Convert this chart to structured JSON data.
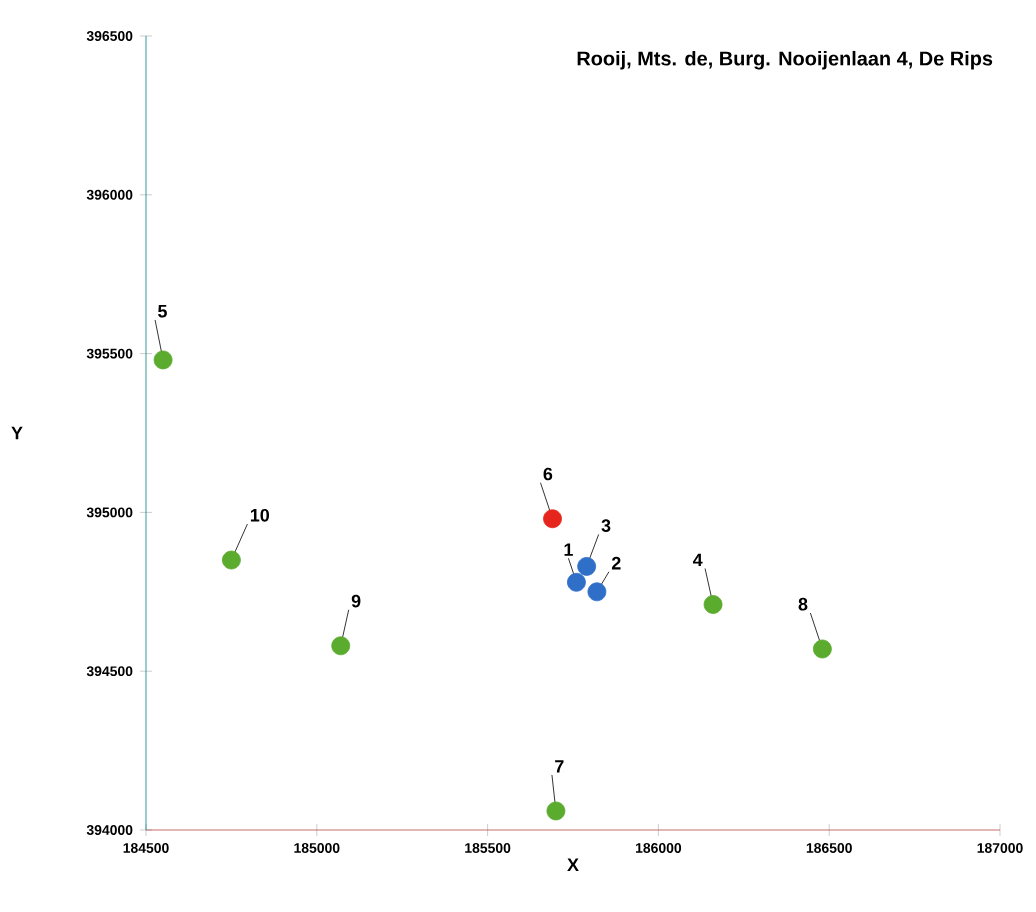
{
  "chart_data": {
    "type": "scatter",
    "title": "Rooij, Mts. de, Burg. Nooijenlaan 4, De Rips",
    "xlabel": "X",
    "ylabel": "Y",
    "xlim": [
      184500,
      187000
    ],
    "ylim": [
      394000,
      396500
    ],
    "xticks": [
      184500,
      185000,
      185500,
      186000,
      186500,
      187000
    ],
    "yticks": [
      394000,
      394500,
      395000,
      395500,
      396000,
      396500
    ],
    "grid": false,
    "marker": "circle",
    "series": [
      {
        "color": "#5aab2e",
        "x": [
          184550,
          184750,
          185070,
          185700,
          186160,
          186480
        ],
        "values": [
          395480,
          394850,
          394580,
          394060,
          394710,
          394570
        ]
      },
      {
        "color": "#e6261c",
        "x": [
          185690
        ],
        "values": [
          394980
        ]
      },
      {
        "color": "#2f6fc8",
        "x": [
          185790,
          185760,
          185820
        ],
        "values": [
          394830,
          394780,
          394750
        ]
      }
    ],
    "annotations": [
      {
        "text": "5",
        "x": 184550,
        "y": 395480
      },
      {
        "text": "10",
        "x": 184750,
        "y": 394850
      },
      {
        "text": "9",
        "x": 185070,
        "y": 394580
      },
      {
        "text": "7",
        "x": 185700,
        "y": 394060
      },
      {
        "text": "4",
        "x": 186160,
        "y": 394710
      },
      {
        "text": "8",
        "x": 186480,
        "y": 394570
      },
      {
        "text": "6",
        "x": 185690,
        "y": 394980
      },
      {
        "text": "3",
        "x": 185790,
        "y": 394830
      },
      {
        "text": "1",
        "x": 185760,
        "y": 394780
      },
      {
        "text": "2",
        "x": 185820,
        "y": 394750
      }
    ]
  }
}
